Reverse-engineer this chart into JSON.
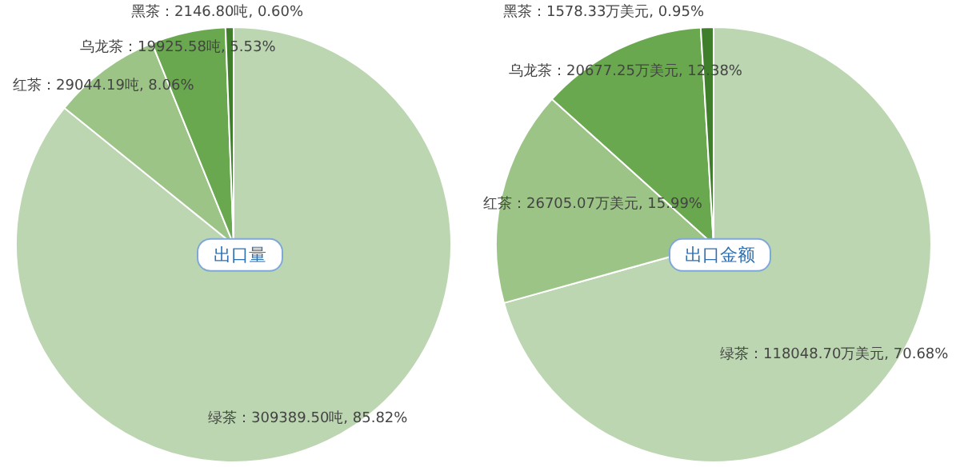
{
  "chart_data": [
    {
      "type": "pie",
      "title": "出口量",
      "categories": [
        "绿茶",
        "红茶",
        "乌龙茶",
        "黑茶"
      ],
      "values": [
        309389.5,
        29044.19,
        19925.58,
        2146.8
      ],
      "colors": [
        "#bcd6b1",
        "#9cc486",
        "#6aa84f",
        "#3f7f2c"
      ],
      "value_labels": [
        "309389.50吨, 85.82%",
        "29044.19吨, 8.06%",
        "19925.58吨, 5.53%",
        "2146.80吨, 0.60%"
      ],
      "legend": false
    },
    {
      "type": "pie",
      "title": "出口金额",
      "categories": [
        "绿茶",
        "红茶",
        "乌龙茶",
        "黑茶"
      ],
      "values": [
        118048.7,
        26705.07,
        20677.25,
        1578.33
      ],
      "colors": [
        "#bcd6b1",
        "#9cc486",
        "#6aa84f",
        "#3f7f2c"
      ],
      "value_labels": [
        "118048.70万美元, 70.68%",
        "26705.07万美元, 15.99%",
        "20677.25万美元, 12.38%",
        "1578.33万美元, 0.95%"
      ],
      "legend": false
    }
  ]
}
